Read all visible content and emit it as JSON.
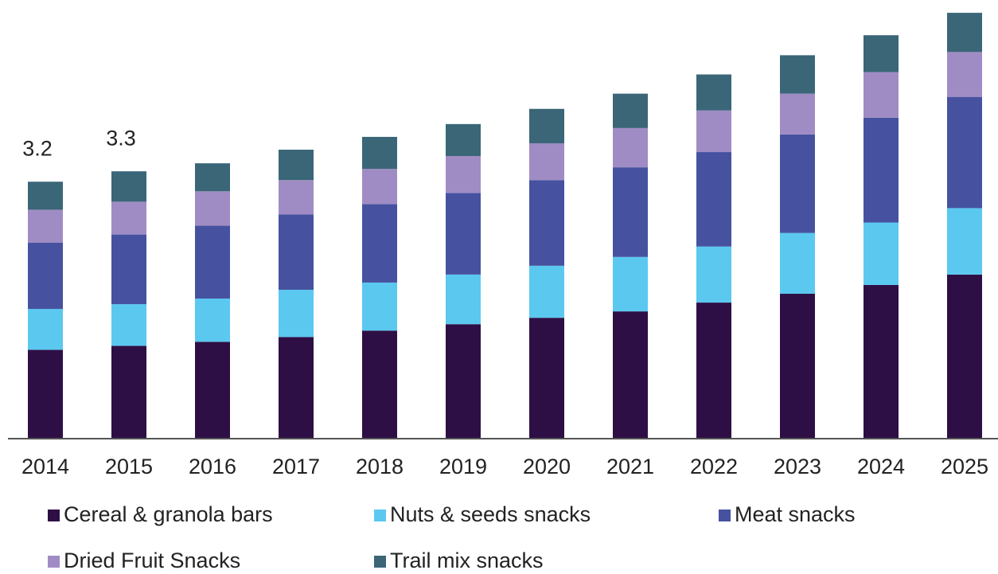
{
  "chart_data": {
    "type": "stacked_bar",
    "categories": [
      "2014",
      "2015",
      "2016",
      "2017",
      "2018",
      "2019",
      "2020",
      "2021",
      "2022",
      "2023",
      "2024",
      "2025"
    ],
    "series": [
      {
        "name": "Cereal & granola bars",
        "color": "#2e0f45",
        "values": [
          1.11,
          1.16,
          1.21,
          1.27,
          1.35,
          1.43,
          1.51,
          1.59,
          1.7,
          1.81,
          1.92,
          2.05
        ]
      },
      {
        "name": "Nuts & seeds snacks",
        "color": "#5bc8f0",
        "values": [
          0.51,
          0.52,
          0.54,
          0.59,
          0.6,
          0.62,
          0.65,
          0.68,
          0.7,
          0.76,
          0.78,
          0.83
        ]
      },
      {
        "name": "Meat snacks",
        "color": "#4652a0",
        "values": [
          0.83,
          0.87,
          0.91,
          0.94,
          0.98,
          1.02,
          1.07,
          1.12,
          1.18,
          1.23,
          1.31,
          1.39
        ]
      },
      {
        "name": "Dried Fruit Snacks",
        "color": "#a08cc4",
        "values": [
          0.41,
          0.41,
          0.43,
          0.43,
          0.44,
          0.46,
          0.46,
          0.49,
          0.52,
          0.51,
          0.57,
          0.56
        ]
      },
      {
        "name": "Trail mix snacks",
        "color": "#3a6678",
        "values": [
          0.35,
          0.38,
          0.35,
          0.38,
          0.4,
          0.4,
          0.43,
          0.43,
          0.45,
          0.48,
          0.46,
          0.49
        ]
      }
    ],
    "total_labels": [
      3.2,
      3.3,
      null,
      null,
      null,
      null,
      null,
      null,
      null,
      null,
      null,
      null
    ],
    "ylim": [
      0,
      5.48
    ]
  }
}
